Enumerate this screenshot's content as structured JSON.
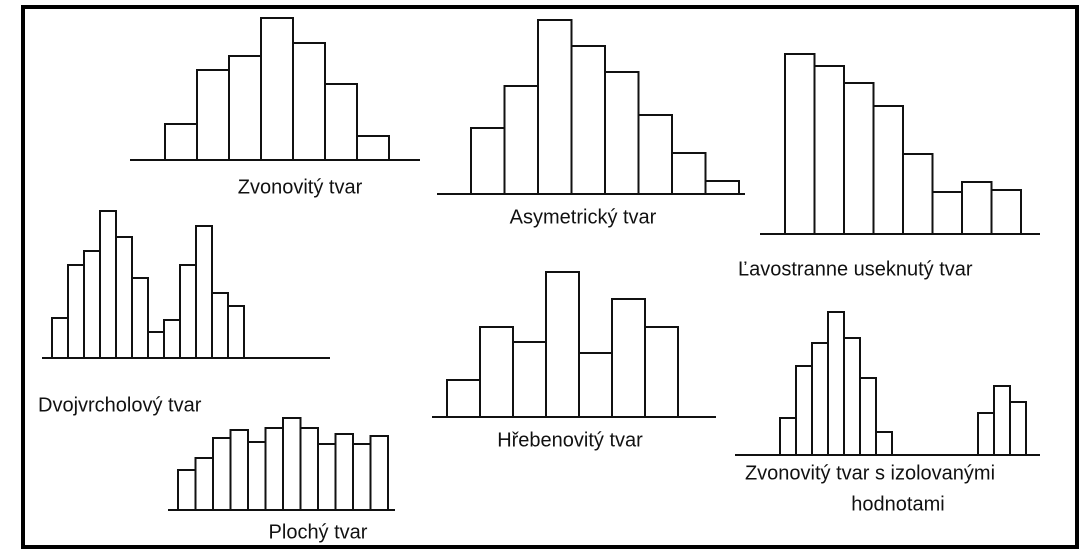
{
  "shapes": [
    {
      "lines": [
        "Zvonovitý tvar"
      ]
    },
    {
      "lines": [
        "Asymetrický tvar"
      ]
    },
    {
      "lines": [
        "Ľavostranne useknutý tvar"
      ]
    },
    {
      "lines": [
        "Dvojvrcholový tvar"
      ]
    },
    {
      "lines": [
        "Plochý tvar"
      ]
    },
    {
      "lines": [
        "Hřebenovitý tvar"
      ]
    },
    {
      "lines": [
        "Zvonovitý tvar s izolovanými",
        "hodnotami"
      ]
    }
  ]
}
